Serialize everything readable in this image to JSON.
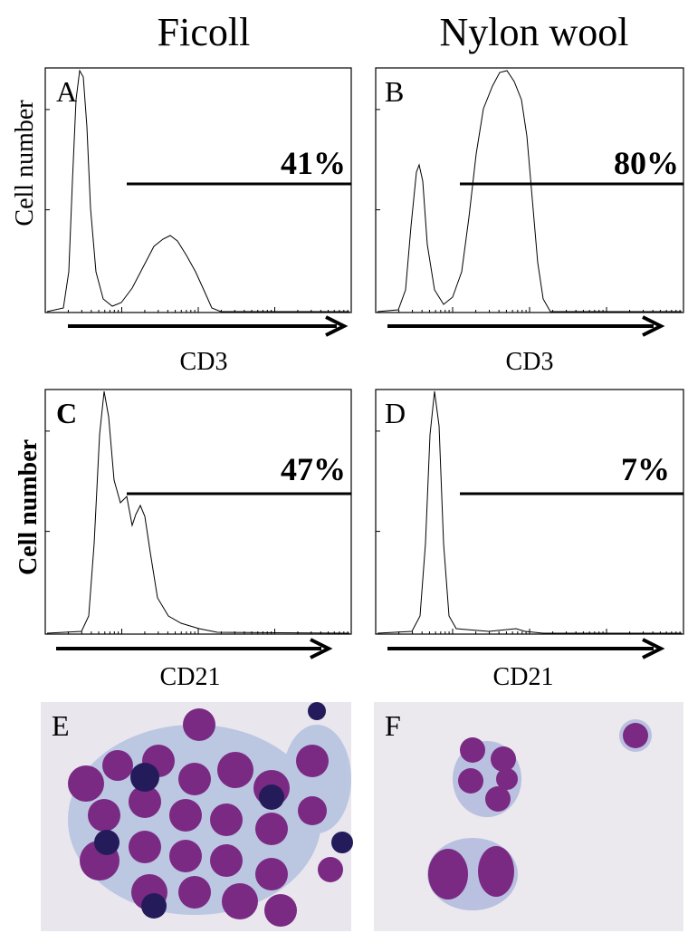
{
  "columns": [
    "Ficoll",
    "Nylon wool"
  ],
  "panels": [
    {
      "letter": "A",
      "percent": "41%",
      "axis_label": "CD3"
    },
    {
      "letter": "B",
      "percent": "80%",
      "axis_label": "CD3"
    },
    {
      "letter": "C",
      "percent": "47%",
      "axis_label": "CD21"
    },
    {
      "letter": "D",
      "percent": "7%",
      "axis_label": "CD21"
    },
    {
      "letter": "E"
    },
    {
      "letter": "F"
    }
  ],
  "y_axis_label": "Cell number"
}
